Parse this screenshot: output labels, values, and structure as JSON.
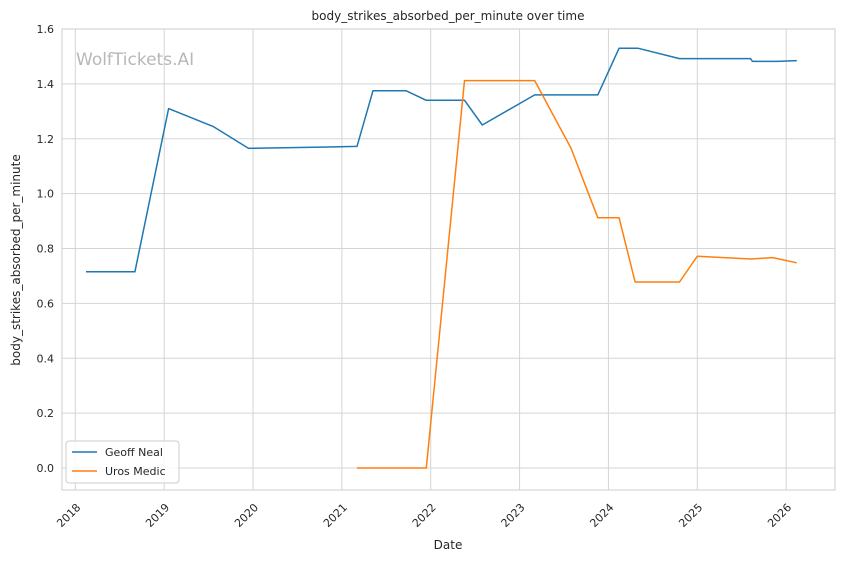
{
  "chart_data": {
    "type": "line",
    "title": "body_strikes_absorbed_per_minute over time",
    "xlabel": "Date",
    "ylabel": "body_strikes_absorbed_per_minute",
    "watermark": "WolfTickets.AI",
    "xlim": [
      2017.85,
      2026.55
    ],
    "ylim": [
      -0.08,
      1.6
    ],
    "x_ticks": [
      2018,
      2019,
      2020,
      2021,
      2022,
      2023,
      2024,
      2025,
      2026
    ],
    "x_tick_labels": [
      "2018",
      "2019",
      "2020",
      "2021",
      "2022",
      "2023",
      "2024",
      "2025",
      "2026"
    ],
    "y_ticks": [
      0.0,
      0.2,
      0.4,
      0.6,
      0.8,
      1.0,
      1.2,
      1.4,
      1.6
    ],
    "y_tick_labels": [
      "0.0",
      "0.2",
      "0.4",
      "0.6",
      "0.8",
      "1.0",
      "1.2",
      "1.4",
      "1.6"
    ],
    "grid": true,
    "legend_position": "lower-left",
    "series": [
      {
        "name": "Geoff Neal",
        "color": "#1f77b4",
        "x": [
          2018.12,
          2018.67,
          2019.05,
          2019.55,
          2019.95,
          2020.85,
          2021.17,
          2021.35,
          2021.72,
          2021.95,
          2022.38,
          2022.58,
          2023.17,
          2023.88,
          2024.12,
          2024.33,
          2024.8,
          2025.6,
          2025.62,
          2025.9,
          2026.12
        ],
        "y": [
          0.715,
          0.715,
          1.31,
          1.245,
          1.165,
          1.17,
          1.172,
          1.375,
          1.375,
          1.34,
          1.34,
          1.25,
          1.36,
          1.36,
          1.53,
          1.53,
          1.492,
          1.492,
          1.482,
          1.482,
          1.485
        ]
      },
      {
        "name": "Uros Medic",
        "color": "#ff7f0e",
        "x": [
          2021.17,
          2021.95,
          2022.38,
          2023.17,
          2023.58,
          2023.88,
          2024.12,
          2024.3,
          2024.8,
          2025.0,
          2025.6,
          2025.85,
          2026.12
        ],
        "y": [
          0.0,
          0.0,
          1.412,
          1.412,
          1.165,
          0.912,
          0.912,
          0.678,
          0.678,
          0.772,
          0.762,
          0.767,
          0.748
        ]
      }
    ]
  }
}
